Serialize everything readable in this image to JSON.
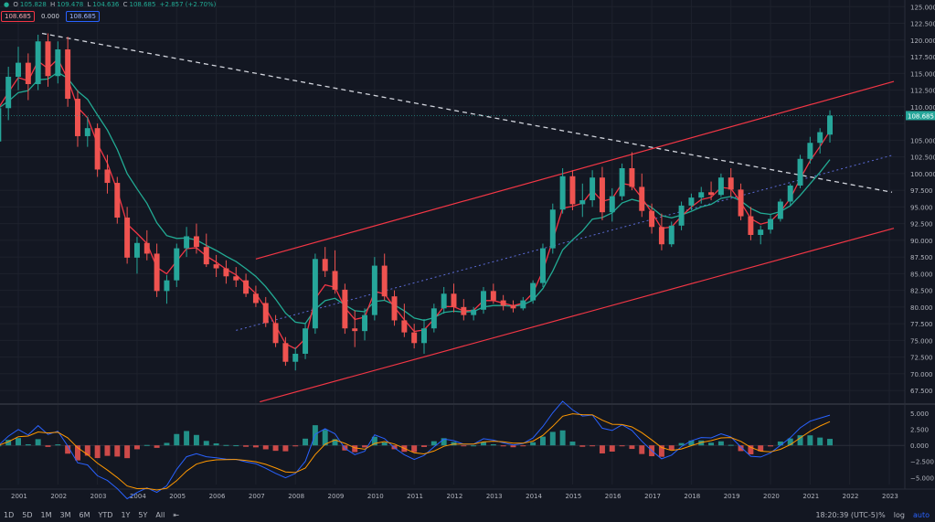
{
  "legend": {
    "open_label": "O",
    "open": "105.828",
    "high_label": "H",
    "high": "109.478",
    "low_label": "L",
    "low": "104.636",
    "close_label": "C",
    "close": "108.685",
    "change": "+2.857 (+2.70%)",
    "badge_price": "108.685",
    "badge_zero": "0.000",
    "badge_blue": "108.685"
  },
  "colors": {
    "background": "#131722",
    "up": "#26a69a",
    "down": "#ef5350",
    "ma_fast": "#f23645",
    "ma_slow": "#22ab94",
    "channel": "#f23645",
    "macd": "#2962ff",
    "signal": "#ff9800"
  },
  "chart_data": [
    {
      "type": "candlestick",
      "title": "",
      "x_ticks": [
        "2001",
        "2002",
        "2003",
        "2004",
        "2005",
        "2006",
        "2007",
        "2008",
        "2009",
        "2010",
        "2011",
        "2012",
        "2013",
        "2014",
        "2015",
        "2016",
        "2017",
        "2018",
        "2019",
        "2020",
        "2021",
        "2022",
        "2023"
      ],
      "y_ticks": [
        "125.000",
        "122.500",
        "120.000",
        "117.500",
        "115.000",
        "112.500",
        "110.000",
        "107.500",
        "105.000",
        "102.500",
        "100.000",
        "97.500",
        "95.000",
        "92.500",
        "90.000",
        "87.500",
        "85.000",
        "82.500",
        "80.000",
        "77.500",
        "75.000",
        "72.500",
        "70.000",
        "67.500"
      ],
      "y_range": [
        65.6,
        126
      ],
      "last_price": "108.685",
      "ohlc": [
        [
          2000.5,
          104.8,
          110.9,
          103.5,
          109.8
        ],
        [
          2000.75,
          109.8,
          116.0,
          108.0,
          114.5
        ],
        [
          2001.0,
          114.5,
          119.0,
          112.5,
          116.6
        ],
        [
          2001.25,
          116.6,
          118.0,
          111.0,
          113.4
        ],
        [
          2001.5,
          113.4,
          120.8,
          112.5,
          119.8
        ],
        [
          2001.75,
          119.8,
          121.0,
          113.0,
          114.6
        ],
        [
          2002.0,
          114.6,
          119.8,
          113.5,
          118.6
        ],
        [
          2002.25,
          118.6,
          120.5,
          110.0,
          111.2
        ],
        [
          2002.5,
          111.2,
          112.5,
          104.0,
          105.6
        ],
        [
          2002.75,
          105.6,
          108.5,
          104.0,
          106.8
        ],
        [
          2003.0,
          106.8,
          107.5,
          99.5,
          100.6
        ],
        [
          2003.25,
          100.6,
          102.8,
          97.0,
          98.6
        ],
        [
          2003.5,
          98.6,
          99.5,
          92.5,
          93.4
        ],
        [
          2003.75,
          93.4,
          95.0,
          86.5,
          87.4
        ],
        [
          2004.0,
          87.4,
          90.5,
          85.0,
          89.6
        ],
        [
          2004.25,
          89.6,
          91.5,
          87.0,
          88.0
        ],
        [
          2004.5,
          88.0,
          89.5,
          81.5,
          82.4
        ],
        [
          2004.75,
          82.4,
          84.8,
          80.5,
          84.0
        ],
        [
          2005.0,
          84.0,
          89.5,
          83.0,
          88.8
        ],
        [
          2005.25,
          88.8,
          92.0,
          87.5,
          90.6
        ],
        [
          2005.5,
          90.6,
          92.5,
          88.0,
          89.0
        ],
        [
          2005.75,
          89.0,
          91.0,
          86.0,
          86.4
        ],
        [
          2006.0,
          86.4,
          87.8,
          84.5,
          85.8
        ],
        [
          2006.25,
          85.8,
          87.0,
          83.5,
          84.6
        ],
        [
          2006.5,
          84.6,
          86.0,
          83.0,
          84.0
        ],
        [
          2006.75,
          84.0,
          85.0,
          81.5,
          82.0
        ],
        [
          2007.0,
          82.0,
          83.2,
          80.0,
          80.6
        ],
        [
          2007.25,
          80.6,
          81.5,
          77.0,
          77.6
        ],
        [
          2007.5,
          77.6,
          78.8,
          74.0,
          74.6
        ],
        [
          2007.75,
          74.6,
          75.5,
          71.2,
          71.8
        ],
        [
          2008.0,
          71.8,
          74.0,
          70.5,
          73.0
        ],
        [
          2008.25,
          73.0,
          77.5,
          72.2,
          76.8
        ],
        [
          2008.5,
          76.8,
          88.0,
          76.0,
          87.2
        ],
        [
          2008.75,
          87.2,
          89.0,
          84.5,
          85.4
        ],
        [
          2009.0,
          85.4,
          88.5,
          82.0,
          82.6
        ],
        [
          2009.25,
          82.6,
          83.5,
          76.0,
          76.8
        ],
        [
          2009.5,
          76.8,
          79.5,
          74.0,
          76.4
        ],
        [
          2009.75,
          76.4,
          79.8,
          75.0,
          78.8
        ],
        [
          2010.0,
          78.8,
          87.5,
          78.0,
          86.2
        ],
        [
          2010.25,
          86.2,
          88.0,
          81.0,
          81.6
        ],
        [
          2010.5,
          81.6,
          82.5,
          77.2,
          78.0
        ],
        [
          2010.75,
          78.0,
          80.5,
          75.5,
          76.2
        ],
        [
          2011.0,
          76.2,
          77.5,
          73.8,
          74.6
        ],
        [
          2011.25,
          74.6,
          78.2,
          73.0,
          76.8
        ],
        [
          2011.5,
          76.8,
          80.5,
          76.2,
          79.8
        ],
        [
          2011.75,
          79.8,
          83.0,
          79.0,
          82.0
        ],
        [
          2012.0,
          82.0,
          83.5,
          79.2,
          80.0
        ],
        [
          2012.25,
          80.0,
          81.2,
          78.0,
          78.8
        ],
        [
          2012.5,
          78.8,
          80.0,
          78.0,
          79.6
        ],
        [
          2012.75,
          79.6,
          83.0,
          79.0,
          82.4
        ],
        [
          2013.0,
          82.4,
          83.5,
          80.5,
          81.0
        ],
        [
          2013.25,
          81.0,
          81.8,
          79.5,
          80.2
        ],
        [
          2013.5,
          80.2,
          81.0,
          79.2,
          79.8
        ],
        [
          2013.75,
          79.8,
          81.5,
          79.5,
          81.0
        ],
        [
          2014.0,
          81.0,
          84.0,
          80.5,
          83.6
        ],
        [
          2014.25,
          83.6,
          89.5,
          83.0,
          88.8
        ],
        [
          2014.5,
          88.8,
          95.5,
          88.0,
          94.6
        ],
        [
          2014.75,
          94.6,
          100.8,
          94.0,
          99.6
        ],
        [
          2015.0,
          99.6,
          100.5,
          94.5,
          95.4
        ],
        [
          2015.25,
          95.4,
          98.5,
          93.5,
          96.0
        ],
        [
          2015.5,
          96.0,
          100.5,
          95.0,
          99.4
        ],
        [
          2015.75,
          99.4,
          101.0,
          93.0,
          94.2
        ],
        [
          2016.0,
          94.2,
          97.8,
          92.8,
          96.6
        ],
        [
          2016.25,
          96.6,
          101.5,
          96.0,
          100.8
        ],
        [
          2016.5,
          100.8,
          103.2,
          97.5,
          98.0
        ],
        [
          2016.75,
          98.0,
          100.0,
          93.5,
          94.4
        ],
        [
          2017.0,
          94.4,
          95.5,
          91.0,
          92.0
        ],
        [
          2017.25,
          92.0,
          94.0,
          88.5,
          89.4
        ],
        [
          2017.5,
          89.4,
          92.8,
          89.0,
          92.2
        ],
        [
          2017.75,
          92.2,
          95.8,
          91.5,
          95.2
        ],
        [
          2018.0,
          95.2,
          97.0,
          94.5,
          96.4
        ],
        [
          2018.25,
          96.4,
          98.0,
          95.5,
          97.2
        ],
        [
          2018.5,
          97.2,
          98.8,
          96.0,
          96.8
        ],
        [
          2018.75,
          96.8,
          100.0,
          96.5,
          99.4
        ],
        [
          2019.0,
          99.4,
          100.8,
          96.5,
          97.6
        ],
        [
          2019.25,
          97.6,
          98.5,
          93.0,
          93.6
        ],
        [
          2019.5,
          93.6,
          95.0,
          90.0,
          90.8
        ],
        [
          2019.75,
          90.8,
          92.2,
          89.4,
          91.6
        ],
        [
          2020.0,
          91.6,
          93.8,
          91.0,
          93.2
        ],
        [
          2020.25,
          93.2,
          96.2,
          92.8,
          95.8
        ],
        [
          2020.5,
          95.8,
          98.5,
          95.2,
          98.2
        ],
        [
          2020.75,
          98.2,
          102.8,
          97.8,
          102.2
        ],
        [
          2021.0,
          102.2,
          105.5,
          101.5,
          104.6
        ],
        [
          2021.25,
          104.6,
          106.8,
          103.0,
          106.2
        ],
        [
          2021.5,
          105.828,
          109.478,
          104.636,
          108.685
        ]
      ]
    },
    {
      "type": "line",
      "title": "",
      "y_ticks": [
        "5.000",
        "2.500",
        "0.000",
        "−2.500",
        "−5.000"
      ],
      "y_range": [
        -6.1,
        6.3
      ]
    }
  ],
  "toolbar": {
    "timeframes": [
      "1D",
      "5D",
      "1M",
      "3M",
      "6M",
      "YTD",
      "1Y",
      "5Y",
      "All"
    ],
    "time": "18:20:39 (UTC-5)",
    "percent": "%",
    "log": "log",
    "auto": "auto"
  }
}
